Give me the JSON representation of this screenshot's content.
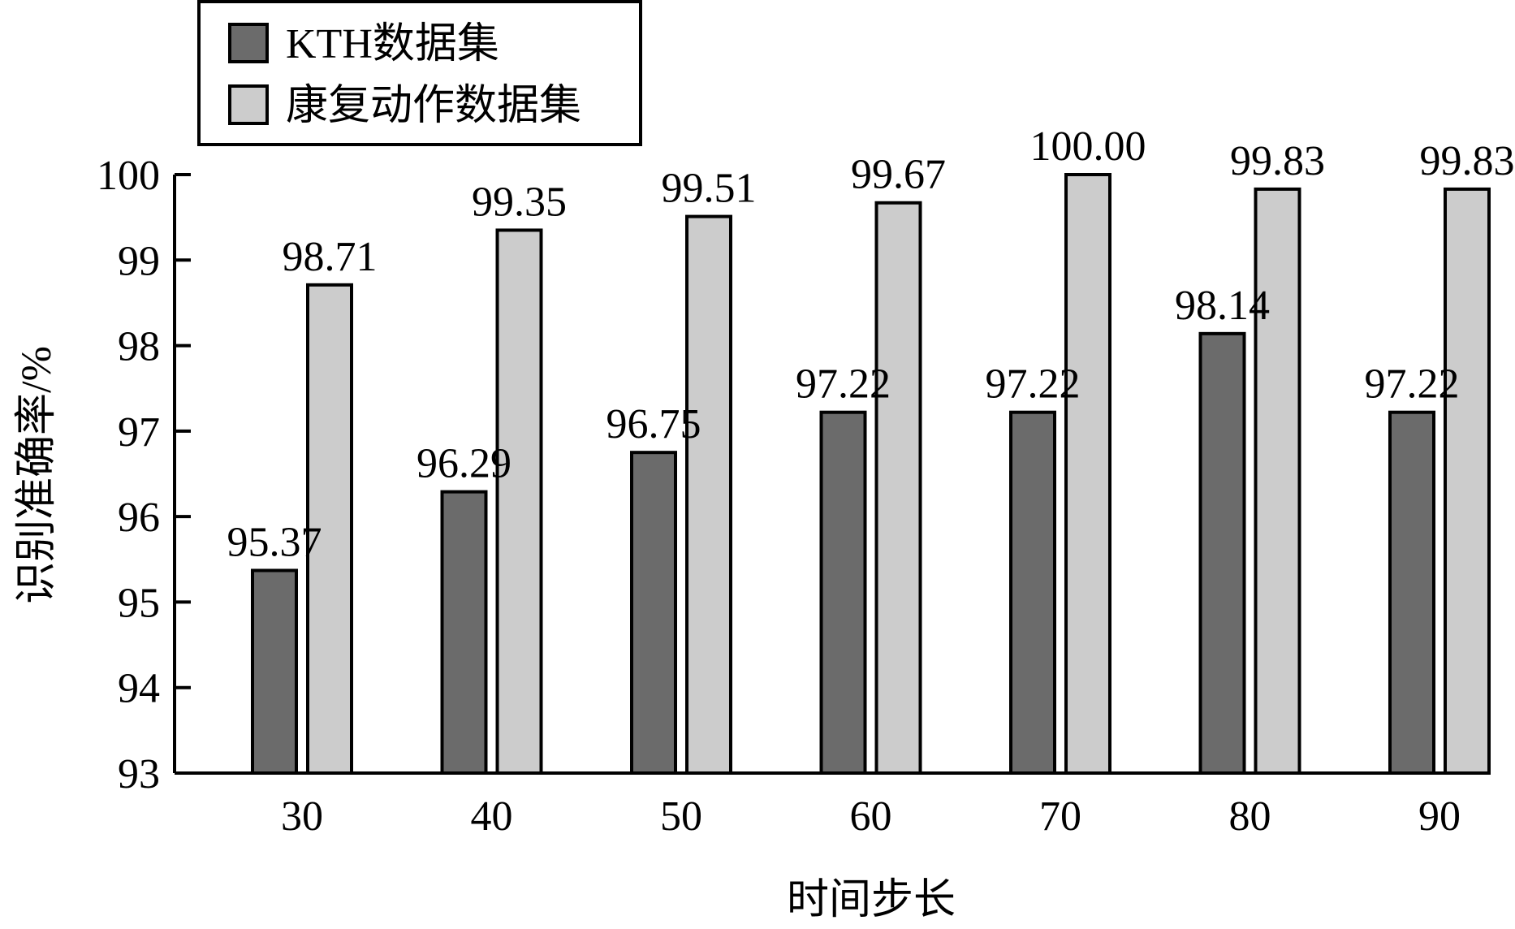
{
  "chart_data": {
    "type": "bar",
    "xlabel": "时间步长",
    "ylabel": "识别准确率/%",
    "ylim": [
      93,
      100
    ],
    "yticks": [
      93,
      94,
      95,
      96,
      97,
      98,
      99,
      100
    ],
    "categories": [
      "30",
      "40",
      "50",
      "60",
      "70",
      "80",
      "90"
    ],
    "series": [
      {
        "name": "KTH数据集",
        "color": "#6b6b6b",
        "values": [
          95.37,
          96.29,
          96.75,
          97.22,
          97.22,
          98.14,
          97.22
        ],
        "labels": [
          "95.37",
          "96.29",
          "96.75",
          "97.22",
          "97.22",
          "98.14",
          "97.22"
        ]
      },
      {
        "name": "康复动作数据集",
        "color": "#cccccc",
        "values": [
          98.71,
          99.35,
          99.51,
          99.67,
          100.0,
          99.83,
          99.83
        ],
        "labels": [
          "98.71",
          "99.35",
          "99.51",
          "99.67",
          "100.00",
          "99.83",
          "99.83"
        ]
      }
    ],
    "legend_position": "top-left",
    "grid": false
  }
}
